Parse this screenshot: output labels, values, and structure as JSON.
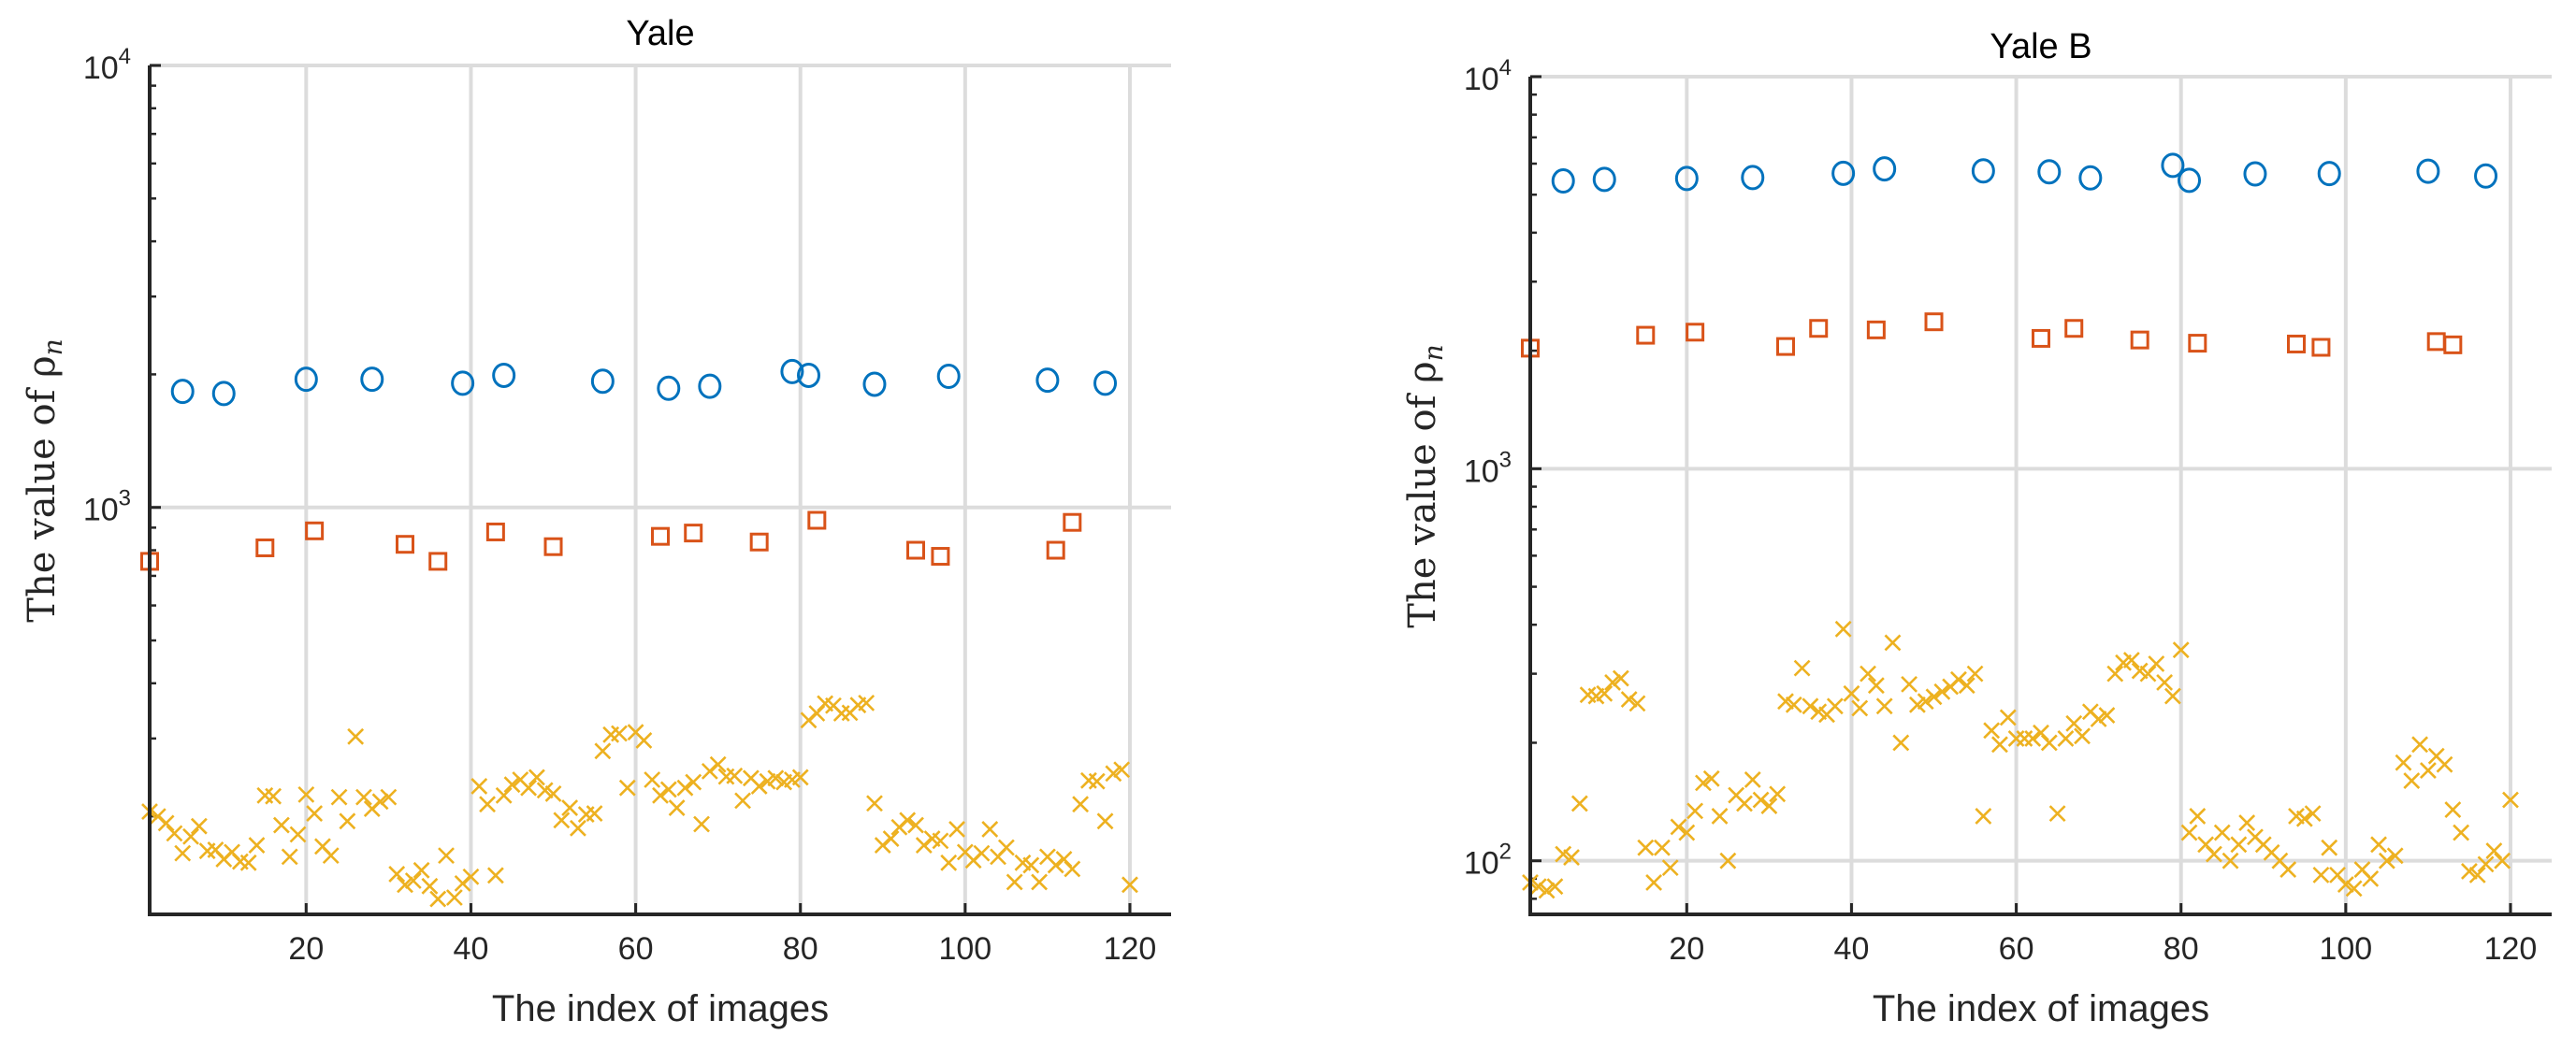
{
  "colors": {
    "circle_series": "#0072BD",
    "square_series": "#D95319",
    "cross_series": "#EDB120",
    "grid": "#dcdcdc",
    "axis": "#262626"
  },
  "chart_data": [
    {
      "type": "scatter",
      "title": "Yale",
      "xlabel": "The index of images",
      "ylabel": "The value of ρn",
      "ylabel_main": "The value of ρ",
      "ylabel_sub": "n",
      "yscale": "log",
      "xlim": [
        1,
        125
      ],
      "ylim": [
        120,
        10000
      ],
      "xticks": [
        20,
        40,
        60,
        80,
        100,
        120
      ],
      "yticks": [
        {
          "value": 1000,
          "base": "10",
          "exp": "3"
        },
        {
          "value": 10000,
          "base": "10",
          "exp": "4"
        }
      ],
      "grid": true,
      "legend": "none",
      "series": [
        {
          "marker": "circle",
          "x": [
            5,
            10,
            20,
            28,
            39,
            44,
            56,
            64,
            69,
            79,
            81,
            89,
            98,
            110,
            117
          ],
          "y": [
            1830,
            1810,
            1950,
            1950,
            1910,
            1990,
            1930,
            1860,
            1880,
            2030,
            1990,
            1900,
            1980,
            1940,
            1910
          ]
        },
        {
          "marker": "square",
          "x": [
            1,
            15,
            21,
            32,
            36,
            43,
            50,
            63,
            67,
            75,
            82,
            94,
            97,
            111,
            113
          ],
          "y": [
            755,
            810,
            885,
            825,
            755,
            880,
            815,
            860,
            875,
            835,
            935,
            800,
            775,
            800,
            925
          ]
        },
        {
          "marker": "cross",
          "x": [
            1,
            2,
            3,
            4,
            5,
            6,
            7,
            8,
            9,
            10,
            11,
            12,
            13,
            14,
            15,
            16,
            17,
            18,
            19,
            20,
            21,
            22,
            23,
            24,
            25,
            26,
            27,
            28,
            29,
            30,
            31,
            32,
            33,
            34,
            35,
            36,
            37,
            38,
            39,
            40,
            41,
            42,
            43,
            44,
            45,
            46,
            47,
            48,
            49,
            50,
            51,
            52,
            53,
            54,
            55,
            56,
            57,
            58,
            59,
            60,
            61,
            62,
            63,
            64,
            65,
            66,
            67,
            68,
            69,
            70,
            71,
            72,
            73,
            74,
            75,
            76,
            77,
            78,
            79,
            80,
            81,
            82,
            83,
            84,
            85,
            86,
            87,
            88,
            89,
            90,
            91,
            92,
            93,
            94,
            95,
            96,
            97,
            98,
            99,
            100,
            101,
            102,
            103,
            104,
            105,
            106,
            107,
            108,
            109,
            110,
            111,
            112,
            113,
            114,
            115,
            116,
            117,
            118,
            119,
            120
          ],
          "y": [
            205,
            200,
            193,
            183,
            165,
            180,
            190,
            167,
            168,
            160,
            166,
            158,
            157,
            172,
            223,
            222,
            191,
            162,
            182,
            224,
            203,
            171,
            163,
            221,
            195,
            303,
            221,
            208,
            216,
            221,
            148,
            140,
            143,
            151,
            139,
            130,
            163,
            131,
            141,
            146,
            234,
            213,
            147,
            223,
            236,
            242,
            232,
            245,
            229,
            225,
            196,
            209,
            188,
            202,
            203,
            281,
            306,
            308,
            232,
            310,
            297,
            242,
            223,
            230,
            209,
            232,
            239,
            192,
            253,
            262,
            246,
            247,
            217,
            244,
            234,
            240,
            244,
            239,
            242,
            245,
            330,
            342,
            360,
            356,
            342,
            343,
            357,
            361,
            214,
            172,
            178,
            189,
            196,
            191,
            172,
            178,
            176,
            157,
            187,
            166,
            159,
            165,
            187,
            162,
            170,
            142,
            157,
            155,
            142,
            162,
            155,
            160,
            152,
            213,
            241,
            240,
            195,
            250,
            255,
            140
          ]
        }
      ]
    },
    {
      "type": "scatter",
      "title": "Yale B",
      "xlabel": "The index of images",
      "ylabel": "The value of ρn",
      "ylabel_main": "The value of ρ",
      "ylabel_sub": "n",
      "yscale": "log",
      "xlim": [
        1,
        125
      ],
      "ylim": [
        73,
        10000
      ],
      "xticks": [
        20,
        40,
        60,
        80,
        100,
        120
      ],
      "yticks": [
        {
          "value": 100,
          "base": "10",
          "exp": "2"
        },
        {
          "value": 1000,
          "base": "10",
          "exp": "3"
        },
        {
          "value": 10000,
          "base": "10",
          "exp": "4"
        }
      ],
      "grid": true,
      "legend": "none",
      "series": [
        {
          "marker": "circle",
          "x": [
            5,
            10,
            20,
            28,
            39,
            44,
            56,
            64,
            69,
            79,
            81,
            89,
            98,
            110,
            117
          ],
          "y": [
            5420,
            5470,
            5500,
            5530,
            5670,
            5820,
            5750,
            5720,
            5520,
            5940,
            5440,
            5650,
            5660,
            5740,
            5580
          ]
        },
        {
          "marker": "square",
          "x": [
            1,
            15,
            21,
            32,
            36,
            43,
            50,
            63,
            67,
            75,
            82,
            94,
            97,
            111,
            113
          ],
          "y": [
            2030,
            2190,
            2230,
            2050,
            2280,
            2260,
            2370,
            2150,
            2280,
            2130,
            2090,
            2080,
            2040,
            2110,
            2070
          ]
        },
        {
          "marker": "cross",
          "x": [
            1,
            2,
            3,
            4,
            5,
            6,
            7,
            8,
            9,
            10,
            11,
            12,
            13,
            14,
            15,
            16,
            17,
            18,
            19,
            20,
            21,
            22,
            23,
            24,
            25,
            26,
            27,
            28,
            29,
            30,
            31,
            32,
            33,
            34,
            35,
            36,
            37,
            38,
            39,
            40,
            41,
            42,
            43,
            44,
            45,
            46,
            47,
            48,
            49,
            50,
            51,
            52,
            53,
            54,
            55,
            56,
            57,
            58,
            59,
            60,
            61,
            62,
            63,
            64,
            65,
            66,
            67,
            68,
            69,
            70,
            71,
            72,
            73,
            74,
            75,
            76,
            77,
            78,
            79,
            80,
            81,
            82,
            83,
            84,
            85,
            86,
            87,
            88,
            89,
            90,
            91,
            92,
            93,
            94,
            95,
            96,
            97,
            98,
            99,
            100,
            101,
            102,
            103,
            104,
            105,
            106,
            107,
            108,
            109,
            110,
            111,
            112,
            113,
            114,
            115,
            116,
            117,
            118,
            119,
            120
          ],
          "y": [
            88,
            86,
            84,
            86,
            104,
            102,
            140,
            265,
            263,
            267,
            285,
            292,
            258,
            252,
            108,
            88,
            108,
            96,
            122,
            118,
            134,
            158,
            162,
            130,
            100,
            147,
            140,
            161,
            143,
            138,
            148,
            255,
            250,
            310,
            248,
            240,
            236,
            248,
            390,
            267,
            245,
            300,
            280,
            248,
            360,
            200,
            282,
            250,
            255,
            262,
            270,
            278,
            290,
            280,
            300,
            130,
            215,
            198,
            232,
            205,
            205,
            205,
            212,
            200,
            132,
            205,
            224,
            208,
            240,
            230,
            235,
            300,
            320,
            325,
            305,
            300,
            318,
            285,
            263,
            345,
            118,
            130,
            110,
            104,
            118,
            100,
            110,
            125,
            115,
            110,
            105,
            100,
            95,
            130,
            128,
            132,
            92,
            108,
            92,
            87,
            85,
            95,
            90,
            110,
            100,
            103,
            178,
            160,
            198,
            170,
            185,
            176,
            135,
            118,
            94,
            92,
            98,
            106,
            100,
            143
          ]
        }
      ]
    }
  ]
}
